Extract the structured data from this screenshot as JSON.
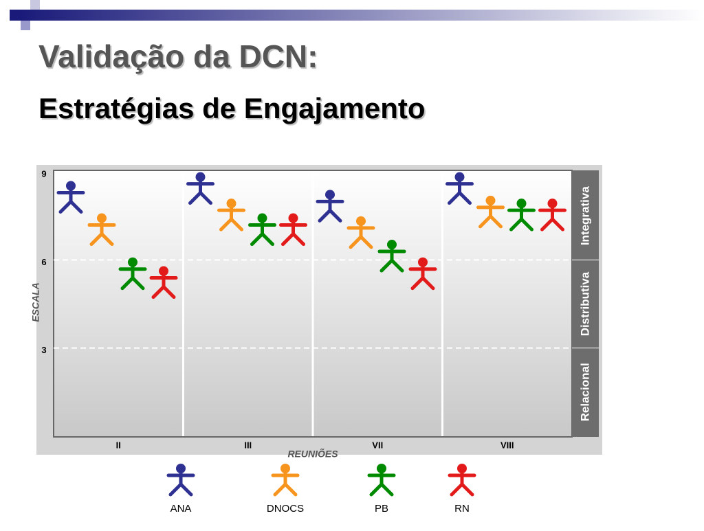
{
  "title": "Validação da DCN:",
  "subtitle": "Estratégias de Engajamento",
  "chart_data": {
    "type": "figure-scatter",
    "x_label": "REUNIÕES",
    "y_label": "ESCALA",
    "categories": [
      "II",
      "III",
      "VII",
      "VIII"
    ],
    "ylim": [
      0,
      9
    ],
    "yticks": [
      3,
      6,
      9
    ],
    "grid": true,
    "bands": [
      {
        "label": "Relacional",
        "range": [
          0,
          3
        ]
      },
      {
        "label": "Distributiva",
        "range": [
          3,
          6
        ]
      },
      {
        "label": "Integrativa",
        "range": [
          6,
          9
        ]
      }
    ],
    "series": [
      {
        "name": "ANA",
        "color": "#2e3192",
        "values": [
          8.1,
          8.4,
          7.8,
          8.4
        ]
      },
      {
        "name": "DNOCS",
        "color": "#f7941d",
        "values": [
          7.0,
          7.5,
          6.9,
          7.6
        ]
      },
      {
        "name": "PB",
        "color": "#008a00",
        "values": [
          5.5,
          7.0,
          6.1,
          7.5
        ]
      },
      {
        "name": "RN",
        "color": "#e21a1a",
        "values": [
          5.2,
          7.0,
          5.5,
          7.5
        ]
      }
    ]
  }
}
